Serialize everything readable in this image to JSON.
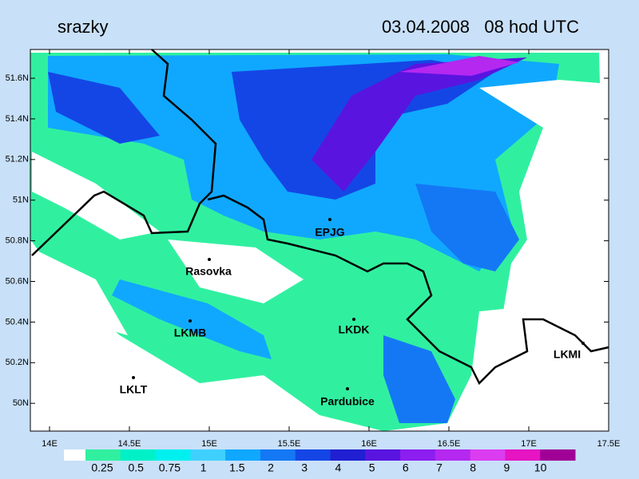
{
  "header": {
    "title": "srazky",
    "datetime": "03.04.2008   08 hod UTC"
  },
  "map": {
    "lat_ticks": [
      {
        "value": 51.6,
        "label": "51.6N"
      },
      {
        "value": 51.4,
        "label": "51.4N"
      },
      {
        "value": 51.2,
        "label": "51.2N"
      },
      {
        "value": 51,
        "label": "51N"
      },
      {
        "value": 50.8,
        "label": "50.8N"
      },
      {
        "value": 50.6,
        "label": "50.6N"
      },
      {
        "value": 50.4,
        "label": "50.4N"
      },
      {
        "value": 50.2,
        "label": "50.2N"
      },
      {
        "value": 50,
        "label": "50N"
      }
    ],
    "lon_ticks": [
      {
        "value": 14,
        "label": "14E"
      },
      {
        "value": 14.5,
        "label": "14.5E"
      },
      {
        "value": 15,
        "label": "15E"
      },
      {
        "value": 15.5,
        "label": "15.5E"
      },
      {
        "value": 16,
        "label": "16E"
      },
      {
        "value": 16.5,
        "label": "16.5E"
      },
      {
        "value": 17,
        "label": "17E"
      },
      {
        "value": 17.5,
        "label": "17.5E"
      }
    ],
    "stations": [
      "EPJG",
      "Rasovka",
      "LKMB",
      "LKDK",
      "LKMI",
      "LKLT",
      "Pardubice"
    ]
  },
  "colorbar": {
    "labels": [
      0.25,
      0.5,
      0.75,
      1,
      1.5,
      2,
      3,
      4,
      5,
      6,
      7,
      8,
      9,
      10
    ],
    "colors": [
      "#ffffff",
      "#30f0a0",
      "#00f0c8",
      "#00f0f0",
      "#40d0ff",
      "#10a8ff",
      "#1478f5",
      "#1446e6",
      "#2020d2",
      "#5a14e0",
      "#8c1ef0",
      "#b428f0",
      "#dc3cf0",
      "#e614c3",
      "#a00096"
    ]
  }
}
